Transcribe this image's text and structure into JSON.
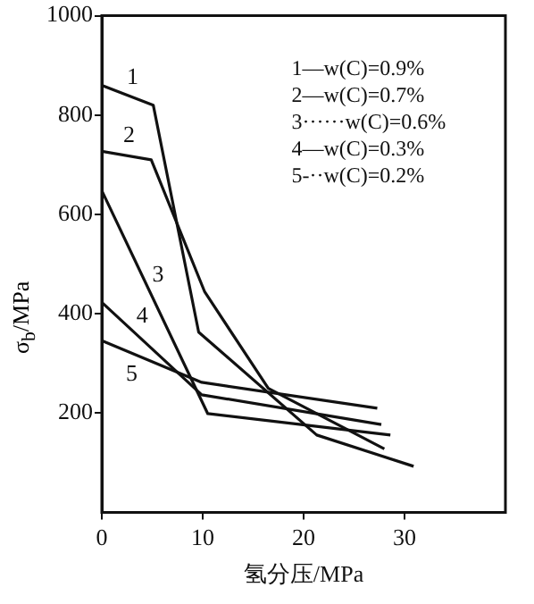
{
  "chart_data": {
    "type": "line",
    "xlabel": "氢分压/MPa",
    "ylabel": "σ$_{b}$/MPa",
    "xlim": [
      0,
      40
    ],
    "xticks": [
      0,
      10,
      20,
      30
    ],
    "ylim": [
      0,
      1000
    ],
    "yticks": [
      200,
      400,
      600,
      800,
      1000
    ],
    "grid": false,
    "legend": false,
    "marker": "none",
    "line_style": "solid",
    "series": [
      {
        "name": "1",
        "color": "#111111",
        "x": [
          0,
          5.1,
          9.6,
          21.3,
          30.9
        ],
        "values": [
          860,
          820,
          363,
          156,
          93
        ]
      },
      {
        "name": "2",
        "color": "#111111",
        "x": [
          0,
          4.9,
          10.2,
          16.5,
          28
        ],
        "values": [
          727,
          710,
          444,
          250,
          128
        ]
      },
      {
        "name": "3",
        "color": "#111111",
        "x": [
          0,
          10.5,
          28.6
        ],
        "values": [
          648,
          199,
          156
        ]
      },
      {
        "name": "4",
        "color": "#111111",
        "x": [
          0,
          9.9,
          27.7
        ],
        "values": [
          423,
          237,
          177
        ]
      },
      {
        "name": "5",
        "color": "#111111",
        "x": [
          0,
          9.9,
          27.3
        ],
        "values": [
          346,
          262,
          210
        ]
      }
    ],
    "annotations": [
      "1—w(C)=0.9%",
      "2—w(C)=0.7%",
      "3······w(C)=0.6%",
      "4—w(C)=0.3%",
      "5-··w(C)=0.2%"
    ]
  }
}
